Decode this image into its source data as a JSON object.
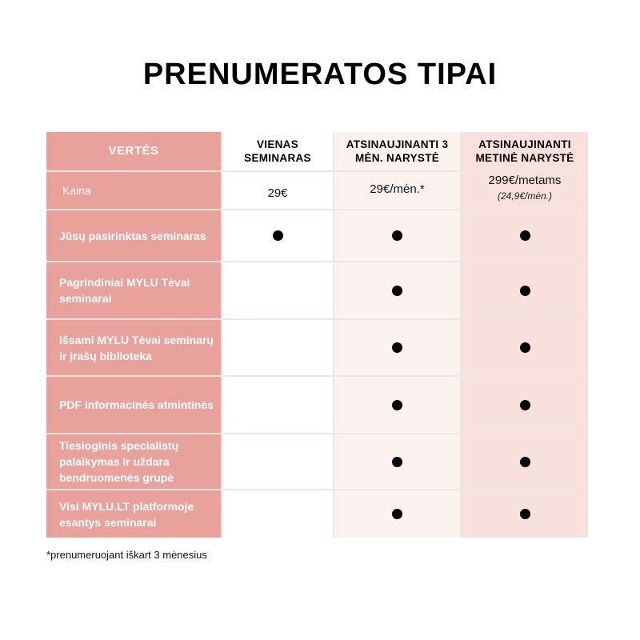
{
  "title": "PRENUMERATOS TIPAI",
  "colors": {
    "label_column": "#e8a29b",
    "column_3mo": "#fcf2f0",
    "column_annual": "#f8e1dd"
  },
  "headers": [
    "VERTĖS",
    "VIENAS SEMINARAS",
    "ATSINAUJINANTI 3 MĖN. NARYSTĖ",
    "ATSINAUJINANTI METINĖ NARYSTĖ"
  ],
  "price_row": {
    "label": "Kaina",
    "single": "29€",
    "three_month": "29€/mėn.*",
    "annual": "299€/metams",
    "annual_note": "(24,9€/mėn.)"
  },
  "rows": [
    {
      "label": "Jūsų pasirinktas seminaras",
      "single": true,
      "three_month": true,
      "annual": true
    },
    {
      "label": "Pagrindiniai MYLU Tėvai seminarai",
      "single": false,
      "three_month": true,
      "annual": true
    },
    {
      "label": "Išsami MYLU Tėvai seminarų ir įrašų biblioteka",
      "single": false,
      "three_month": true,
      "annual": true
    },
    {
      "label": "PDF informacinės atmintinės",
      "single": false,
      "three_month": true,
      "annual": true
    },
    {
      "label": "Tiesioginis specialistų palaikymas ir uždara bendruomenės grupė",
      "single": false,
      "three_month": true,
      "annual": true
    },
    {
      "label": "Visi MYLU.LT platformoje esantys seminarai",
      "single": false,
      "three_month": true,
      "annual": true
    }
  ],
  "footnote": "*prenumeruojant iškart 3 mėnesius"
}
